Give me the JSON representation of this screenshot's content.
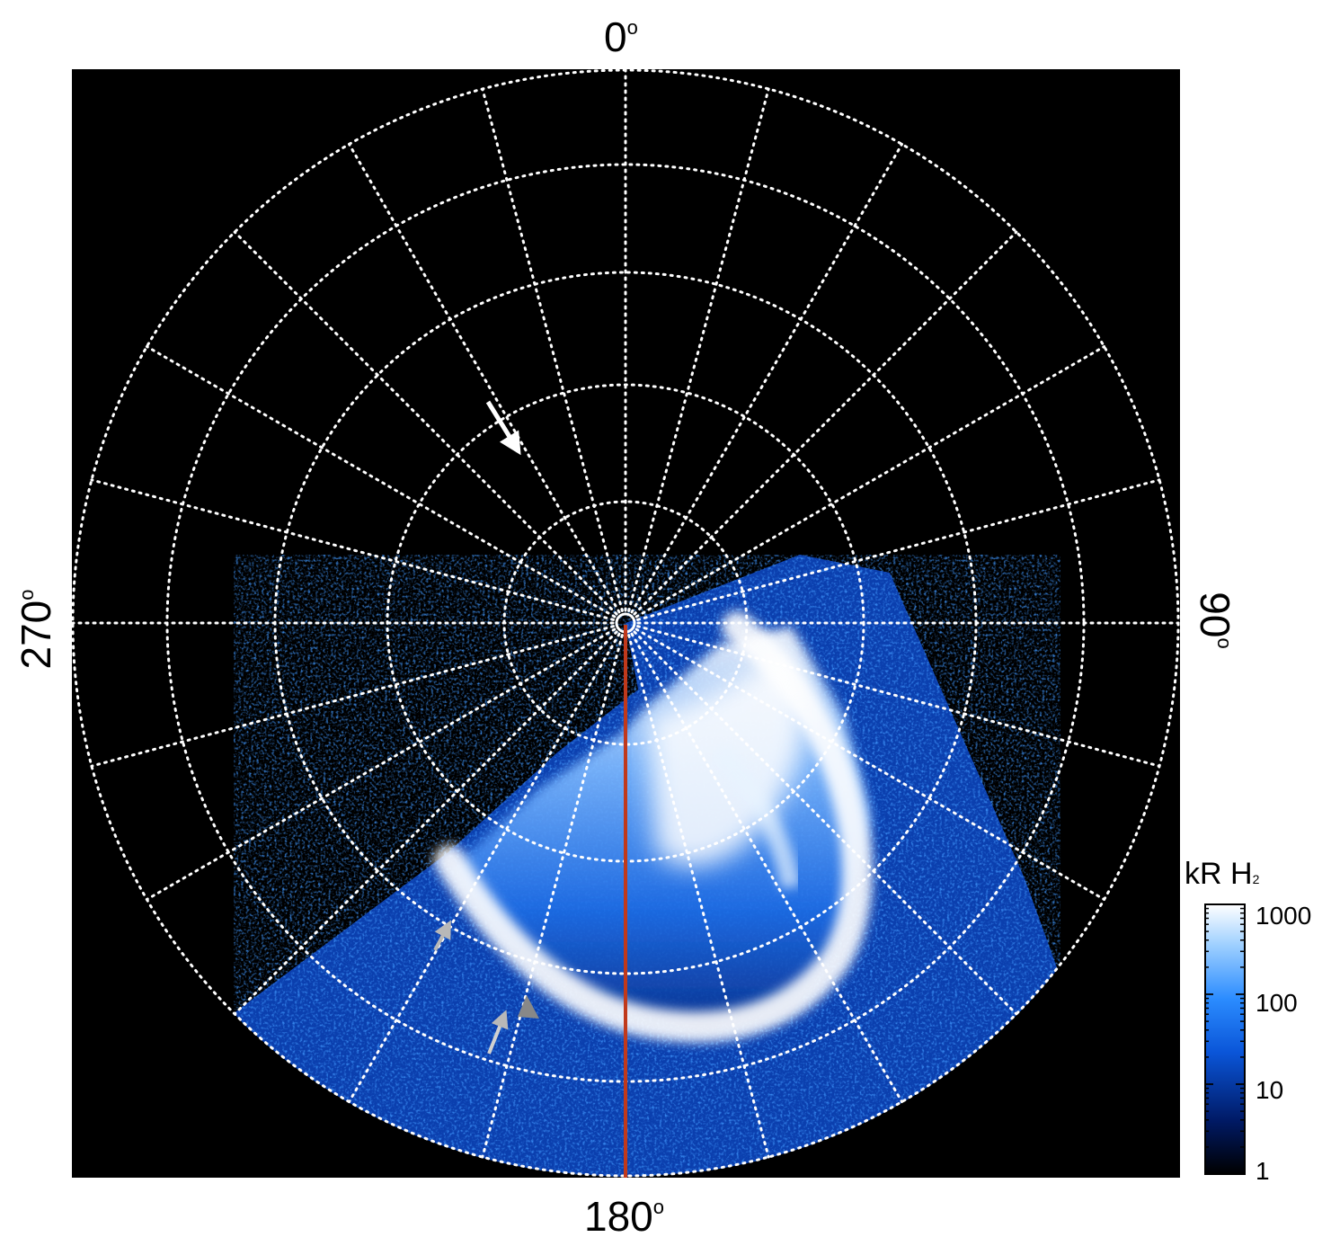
{
  "axis_labels": {
    "top": "0",
    "right": "90",
    "bottom": "180",
    "left": "270",
    "degree_symbol": "o"
  },
  "colorbar": {
    "title": "kR H",
    "title_subscript": "2",
    "scale": "log",
    "ticks": [
      "1000",
      "100",
      "10",
      "1"
    ],
    "gradient_colors": [
      "#000000",
      "#001a66",
      "#0a55d8",
      "#2b8cff",
      "#9fd0ff",
      "#ffffff"
    ]
  },
  "colors": {
    "background": "#000000",
    "grid": "#ffffff",
    "meridian_line": "#c0391b",
    "arrow_white": "#ffffff",
    "arrow_gray": "#b8b8b8",
    "arrow_dark_gray": "#888888"
  }
}
